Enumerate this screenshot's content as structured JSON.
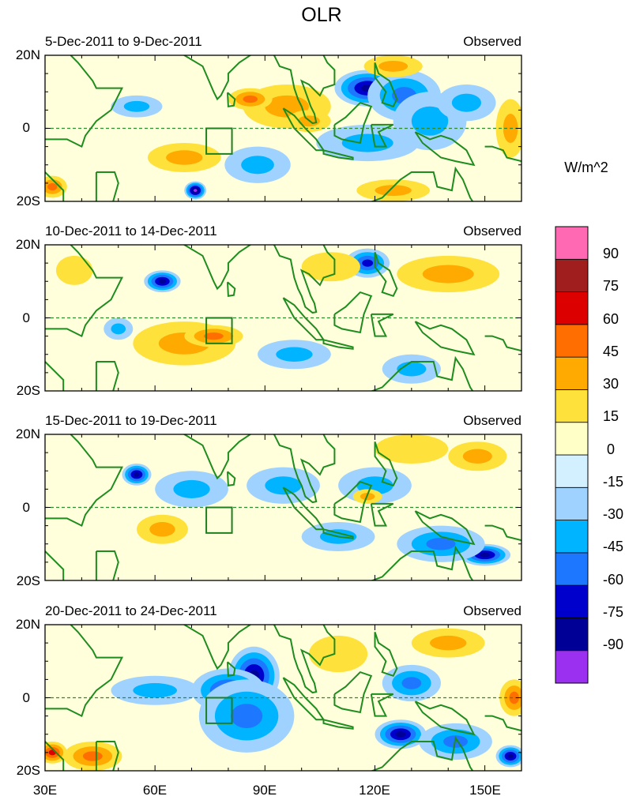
{
  "chart_data": {
    "type": "heatmap",
    "title": "OLR",
    "units": "W/m^2",
    "colors": {
      "coast": "#1e8c1e",
      "zero_line": "#2e8b2e",
      "box": "#1e7f1e"
    },
    "x_ticks": [
      {
        "value": 30,
        "label": "30E"
      },
      {
        "value": 60,
        "label": "60E"
      },
      {
        "value": 90,
        "label": "90E"
      },
      {
        "value": 120,
        "label": "120E"
      },
      {
        "value": 150,
        "label": "150E"
      }
    ],
    "xlim": [
      30,
      160
    ],
    "ylim": [
      -20,
      20
    ],
    "y_ticks": [
      {
        "value": 20,
        "label": "20N"
      },
      {
        "value": 0,
        "label": "0"
      },
      {
        "value": -20,
        "label": "20S"
      }
    ],
    "box_region": {
      "lon": [
        74,
        81
      ],
      "lat": [
        -7,
        0
      ]
    },
    "colorbar": {
      "colors": [
        "#9b30f0",
        "#000096",
        "#0000cd",
        "#1e78ff",
        "#00b4ff",
        "#a0d2ff",
        "#d2f0ff",
        "#ffffc8",
        "#ffe13c",
        "#ffaa00",
        "#ff6e00",
        "#dc0000",
        "#a01e1e",
        "#ff69b4"
      ],
      "labels": [
        "-90",
        "-75",
        "-60",
        "-45",
        "-30",
        "-15",
        "0",
        "15",
        "30",
        "45",
        "60",
        "75",
        "90"
      ]
    },
    "panels": [
      {
        "period": "5-Dec-2011 to 9-Dec-2011",
        "label": "Observed",
        "features": [
          {
            "lon": 118,
            "lat": 11,
            "v": -80,
            "rx": 9,
            "ry": 5
          },
          {
            "lon": 128,
            "lat": 9,
            "v": -50,
            "rx": 10,
            "ry": 7
          },
          {
            "lon": 135,
            "lat": 2,
            "v": -35,
            "rx": 10,
            "ry": 8
          },
          {
            "lon": 145,
            "lat": 7,
            "v": -30,
            "rx": 8,
            "ry": 5
          },
          {
            "lon": 118,
            "lat": -4,
            "v": -35,
            "rx": 14,
            "ry": 5
          },
          {
            "lon": 55,
            "lat": 6,
            "v": -35,
            "rx": 7,
            "ry": 3
          },
          {
            "lon": 88,
            "lat": -10,
            "v": -40,
            "rx": 9,
            "ry": 5
          },
          {
            "lon": 71,
            "lat": -17,
            "v": -90,
            "rx": 3,
            "ry": 2.5
          },
          {
            "lon": 68,
            "lat": -8,
            "v": 30,
            "rx": 10,
            "ry": 4
          },
          {
            "lon": 96,
            "lat": 6,
            "v": 30,
            "rx": 12,
            "ry": 6
          },
          {
            "lon": 86,
            "lat": 8,
            "v": 45,
            "rx": 6,
            "ry": 3
          },
          {
            "lon": 102,
            "lat": 2,
            "v": 30,
            "rx": 6,
            "ry": 3
          },
          {
            "lon": 125,
            "lat": 17,
            "v": 30,
            "rx": 8,
            "ry": 3
          },
          {
            "lon": 157,
            "lat": 0,
            "v": 30,
            "rx": 4,
            "ry": 8
          },
          {
            "lon": 32,
            "lat": -16,
            "v": 45,
            "rx": 4,
            "ry": 3
          },
          {
            "lon": 125,
            "lat": -17,
            "v": 30,
            "rx": 10,
            "ry": 3
          }
        ]
      },
      {
        "period": "10-Dec-2011 to 14-Dec-2011",
        "label": "Observed",
        "features": [
          {
            "lon": 62,
            "lat": 10,
            "v": -75,
            "rx": 5,
            "ry": 3
          },
          {
            "lon": 118,
            "lat": 15,
            "v": -60,
            "rx": 6,
            "ry": 4
          },
          {
            "lon": 50,
            "lat": -3,
            "v": -40,
            "rx": 4,
            "ry": 3
          },
          {
            "lon": 98,
            "lat": -10,
            "v": -30,
            "rx": 10,
            "ry": 4
          },
          {
            "lon": 130,
            "lat": -14,
            "v": -40,
            "rx": 8,
            "ry": 4
          },
          {
            "lon": 68,
            "lat": -7,
            "v": 30,
            "rx": 14,
            "ry": 6
          },
          {
            "lon": 76,
            "lat": -5,
            "v": 45,
            "rx": 8,
            "ry": 3
          },
          {
            "lon": 140,
            "lat": 12,
            "v": 30,
            "rx": 14,
            "ry": 5
          },
          {
            "lon": 108,
            "lat": 14,
            "v": 15,
            "rx": 8,
            "ry": 4
          },
          {
            "lon": 38,
            "lat": 13,
            "v": 15,
            "rx": 5,
            "ry": 4
          }
        ]
      },
      {
        "period": "15-Dec-2011 to 19-Dec-2011",
        "label": "Observed",
        "features": [
          {
            "lon": 55,
            "lat": 9,
            "v": -75,
            "rx": 4,
            "ry": 3
          },
          {
            "lon": 70,
            "lat": 5,
            "v": -40,
            "rx": 10,
            "ry": 5
          },
          {
            "lon": 95,
            "lat": 6,
            "v": -40,
            "rx": 10,
            "ry": 5
          },
          {
            "lon": 120,
            "lat": 6,
            "v": -40,
            "rx": 10,
            "ry": 5
          },
          {
            "lon": 150,
            "lat": -13,
            "v": -75,
            "rx": 7,
            "ry": 3
          },
          {
            "lon": 138,
            "lat": -10,
            "v": -45,
            "rx": 12,
            "ry": 5
          },
          {
            "lon": 110,
            "lat": -8,
            "v": -40,
            "rx": 10,
            "ry": 4
          },
          {
            "lon": 62,
            "lat": -6,
            "v": 30,
            "rx": 7,
            "ry": 4
          },
          {
            "lon": 148,
            "lat": 14,
            "v": 30,
            "rx": 8,
            "ry": 4
          },
          {
            "lon": 130,
            "lat": 16,
            "v": 15,
            "rx": 10,
            "ry": 4
          },
          {
            "lon": 118,
            "lat": 3,
            "v": 30,
            "rx": 4,
            "ry": 2
          }
        ]
      },
      {
        "period": "20-Dec-2011 to 24-Dec-2011",
        "label": "Observed",
        "features": [
          {
            "lon": 87,
            "lat": 6,
            "v": -75,
            "rx": 7,
            "ry": 8
          },
          {
            "lon": 80,
            "lat": 2,
            "v": -60,
            "rx": 10,
            "ry": 6
          },
          {
            "lon": 85,
            "lat": -5,
            "v": -45,
            "rx": 13,
            "ry": 10
          },
          {
            "lon": 130,
            "lat": 4,
            "v": -50,
            "rx": 8,
            "ry": 5
          },
          {
            "lon": 127,
            "lat": -10,
            "v": -75,
            "rx": 7,
            "ry": 4
          },
          {
            "lon": 157,
            "lat": -16,
            "v": -80,
            "rx": 4,
            "ry": 3
          },
          {
            "lon": 142,
            "lat": -12,
            "v": -45,
            "rx": 10,
            "ry": 5
          },
          {
            "lon": 60,
            "lat": 2,
            "v": -30,
            "rx": 12,
            "ry": 4
          },
          {
            "lon": 43,
            "lat": -16,
            "v": 50,
            "rx": 8,
            "ry": 4
          },
          {
            "lon": 32,
            "lat": -15,
            "v": 70,
            "rx": 4,
            "ry": 3
          },
          {
            "lon": 140,
            "lat": 15,
            "v": 30,
            "rx": 10,
            "ry": 4
          },
          {
            "lon": 158,
            "lat": 0,
            "v": 45,
            "rx": 4,
            "ry": 5
          },
          {
            "lon": 110,
            "lat": 12,
            "v": 20,
            "rx": 8,
            "ry": 5
          }
        ]
      }
    ]
  }
}
